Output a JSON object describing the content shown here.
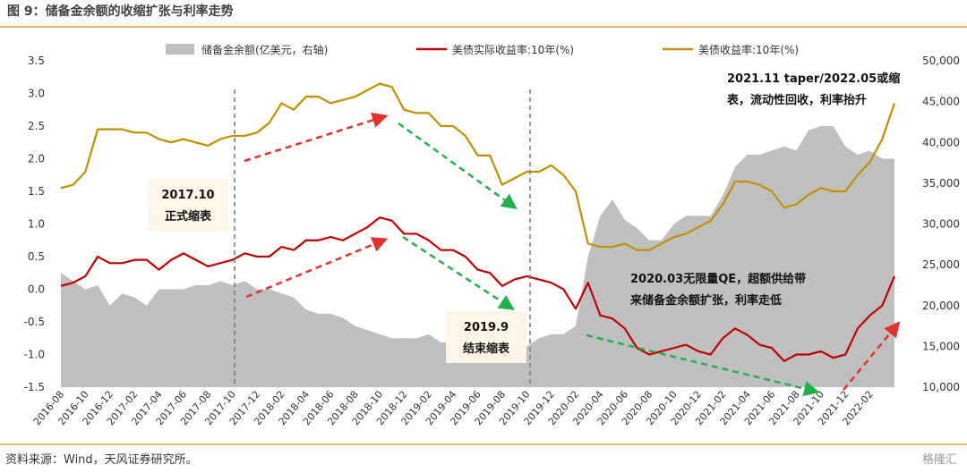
{
  "chart_data": {
    "type": "combo",
    "title": "图 9：储备金余额的收缩扩张与利率走势",
    "source": "资料来源：Wind，天风证券研究所。",
    "watermark": "格隆汇",
    "categories": [
      "2016-08",
      null,
      "2016-10",
      null,
      "2016-12",
      null,
      "2017-02",
      null,
      "2017-04",
      null,
      "2017-06",
      null,
      "2017-08",
      null,
      "2017-10",
      null,
      "2017-12",
      null,
      "2018-02",
      null,
      "2018-04",
      null,
      "2018-06",
      null,
      "2018-08",
      null,
      "2018-10",
      null,
      "2018-12",
      null,
      "2019-02",
      null,
      "2019-04",
      null,
      "2019-06",
      null,
      "2019-08",
      null,
      "2019-10",
      null,
      "2019-12",
      null,
      "2020-02",
      null,
      "2020-04",
      null,
      "2020-06",
      null,
      "2020-08",
      null,
      "2020-10",
      null,
      "2020-12",
      null,
      "2021-02",
      null,
      "2021-04",
      null,
      "2021-06",
      null,
      "2021-08",
      null,
      "2021-10",
      null,
      "2021-12",
      null,
      "2022-02",
      null,
      null
    ],
    "series": [
      {
        "name": "储备金余额(亿美元，右轴)",
        "color": "#bfbfbf",
        "kind": "area",
        "axis": "y2",
        "values": [
          24000,
          23000,
          22000,
          22500,
          20000,
          21500,
          21000,
          20000,
          22000,
          22000,
          22000,
          22500,
          22500,
          23000,
          22500,
          23000,
          22000,
          22000,
          21500,
          21000,
          19500,
          19000,
          19000,
          18500,
          17500,
          17000,
          16500,
          16000,
          16000,
          16000,
          16500,
          15500,
          15500,
          16000,
          15000,
          15500,
          14500,
          14500,
          15000,
          16000,
          16500,
          16500,
          17500,
          26000,
          31000,
          33000,
          30500,
          29500,
          28000,
          28000,
          30000,
          31000,
          31000,
          31000,
          33500,
          37000,
          38500,
          38500,
          39000,
          39500,
          39000,
          41500,
          42000,
          42000,
          39500,
          38500,
          39000,
          38000,
          38000
        ]
      },
      {
        "name": "美债实际收益率:10年(%)",
        "color": "#c00000",
        "kind": "line",
        "values": [
          0.05,
          0.1,
          0.2,
          0.5,
          0.4,
          0.4,
          0.45,
          0.45,
          0.3,
          0.45,
          0.55,
          0.45,
          0.35,
          0.4,
          0.45,
          0.55,
          0.5,
          0.5,
          0.65,
          0.6,
          0.75,
          0.75,
          0.8,
          0.75,
          0.85,
          0.95,
          1.1,
          1.05,
          0.85,
          0.85,
          0.75,
          0.6,
          0.6,
          0.5,
          0.3,
          0.25,
          0.05,
          0.15,
          0.2,
          0.15,
          0.1,
          0.0,
          -0.3,
          0.1,
          -0.4,
          -0.45,
          -0.6,
          -0.9,
          -1.0,
          -0.95,
          -0.9,
          -0.85,
          -0.95,
          -1.0,
          -0.75,
          -0.6,
          -0.7,
          -0.85,
          -0.9,
          -1.1,
          -1.0,
          -1.0,
          -0.95,
          -1.05,
          -1.0,
          -0.6,
          -0.4,
          -0.25,
          0.2
        ]
      },
      {
        "name": "美债收益率:10年(%)",
        "color": "#bf9000",
        "kind": "line",
        "values": [
          1.55,
          1.6,
          1.8,
          2.45,
          2.45,
          2.45,
          2.4,
          2.4,
          2.3,
          2.25,
          2.3,
          2.25,
          2.2,
          2.3,
          2.35,
          2.35,
          2.4,
          2.55,
          2.85,
          2.75,
          2.95,
          2.95,
          2.85,
          2.9,
          2.95,
          3.05,
          3.15,
          3.1,
          2.75,
          2.7,
          2.7,
          2.5,
          2.5,
          2.35,
          2.05,
          2.05,
          1.6,
          1.7,
          1.8,
          1.8,
          1.9,
          1.75,
          1.5,
          0.7,
          0.65,
          0.65,
          0.7,
          0.6,
          0.6,
          0.7,
          0.8,
          0.85,
          0.95,
          1.05,
          1.3,
          1.65,
          1.65,
          1.6,
          1.5,
          1.25,
          1.3,
          1.45,
          1.55,
          1.5,
          1.5,
          1.75,
          1.95,
          2.3,
          2.85
        ]
      }
    ],
    "ylim": [
      -1.5,
      3.5
    ],
    "yticks": [
      -1.5,
      {
        "value": -1,
        "label": "-1.0"
      },
      -0.5,
      {
        "value": 0,
        "label": "0.0"
      },
      0.5,
      {
        "value": 1,
        "label": "1.0"
      },
      1.5,
      {
        "value": 2,
        "label": "2.0"
      },
      2.5,
      {
        "value": 3,
        "label": "3.0"
      },
      3.5
    ],
    "y2lim": [
      10000,
      50000
    ],
    "y2ticks": [
      {
        "value": 10000,
        "label": "10,000"
      },
      {
        "value": 15000,
        "label": "15,000"
      },
      {
        "value": 20000,
        "label": "20,000"
      },
      {
        "value": 25000,
        "label": "25,000"
      },
      {
        "value": 30000,
        "label": "30,000"
      },
      {
        "value": 35000,
        "label": "35,000"
      },
      {
        "value": 40000,
        "label": "40,000"
      },
      {
        "value": 45000,
        "label": "45,000"
      },
      {
        "value": 50000,
        "label": "50,000"
      }
    ],
    "annotations": [
      [
        "2017.10",
        "正式缩表"
      ],
      [
        "2019.9",
        "结束缩表"
      ],
      [
        "2020.03无限量QE，超额供给带",
        "来储备金余额扩张，利率走低"
      ],
      [
        "2021.11 taper/2022.05或缩",
        "表，流动性回收，利率抬升"
      ]
    ]
  }
}
